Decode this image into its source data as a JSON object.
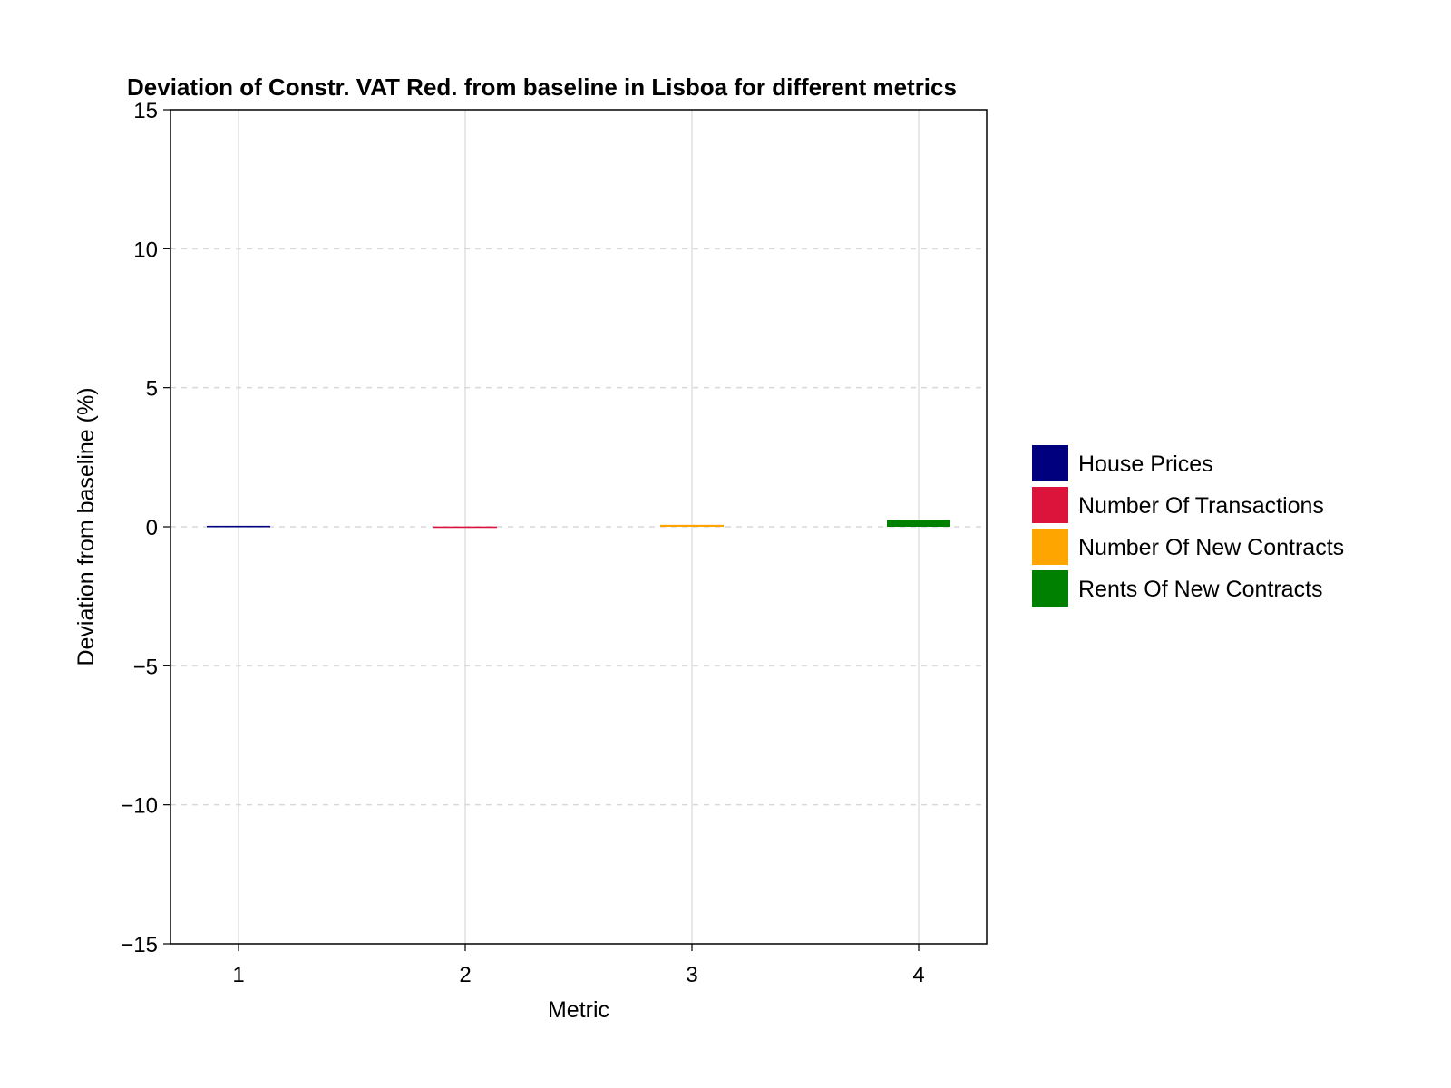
{
  "chart_data": {
    "type": "bar",
    "title": "Deviation of Constr. VAT Red. from baseline in Lisboa for different metrics",
    "xlabel": "Metric",
    "ylabel": "Deviation from baseline (%)",
    "categories": [
      "1",
      "2",
      "3",
      "4"
    ],
    "series": [
      {
        "name": "House Prices",
        "category": "1",
        "value": 0.02,
        "color": "#00007F"
      },
      {
        "name": "Number Of Transactions",
        "category": "2",
        "value": -0.03,
        "color": "#DC143C"
      },
      {
        "name": "Number Of New Contracts",
        "category": "3",
        "value": 0.07,
        "color": "#FFA500"
      },
      {
        "name": "Rents Of New Contracts",
        "category": "4",
        "value": 0.25,
        "color": "#008000"
      }
    ],
    "ylim": [
      -15,
      15
    ],
    "yticks": [
      -15,
      -10,
      -5,
      0,
      5,
      10,
      15
    ],
    "ytick_labels": [
      "−15",
      "−10",
      "−5",
      "0",
      "5",
      "10",
      "15"
    ],
    "xlim": [
      0.7,
      4.3
    ],
    "grid": true,
    "legend_position": "right"
  }
}
